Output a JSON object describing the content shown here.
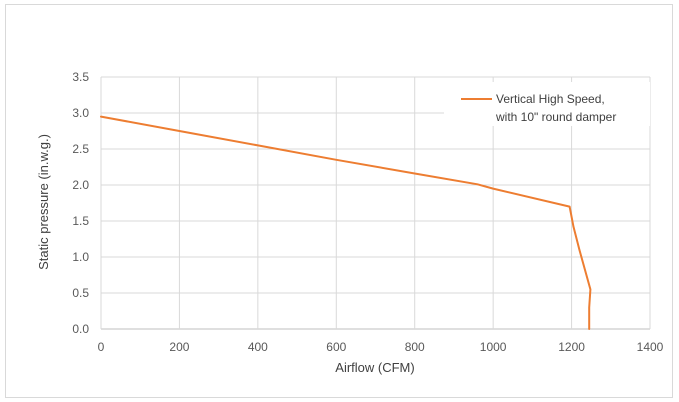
{
  "chart_data": {
    "type": "line",
    "title": "",
    "xlabel": "Airflow (CFM)",
    "ylabel": "Static pressure (in.w.g.)",
    "xlim": [
      0,
      1400
    ],
    "ylim": [
      0,
      3.5
    ],
    "xticks": [
      "0",
      "200",
      "400",
      "600",
      "800",
      "1000",
      "1200",
      "1400"
    ],
    "yticks": [
      "0.0",
      "0.5",
      "1.0",
      "1.5",
      "2.0",
      "2.5",
      "3.0",
      "3.5"
    ],
    "grid": true,
    "legend": {
      "position": "top-right"
    },
    "series": [
      {
        "name": "Vertical High Speed, with 10\" round damper",
        "name_lines": [
          "Vertical High Speed,",
          "with 10\" round damper"
        ],
        "color": "#ed7d31",
        "x": [
          0,
          200,
          400,
          600,
          800,
          960,
          1000,
          1195,
          1205,
          1220,
          1248,
          1245,
          1245
        ],
        "y": [
          2.95,
          2.75,
          2.55,
          2.35,
          2.16,
          2.01,
          1.95,
          1.7,
          1.42,
          1.1,
          0.55,
          0.3,
          0.0
        ]
      }
    ]
  }
}
